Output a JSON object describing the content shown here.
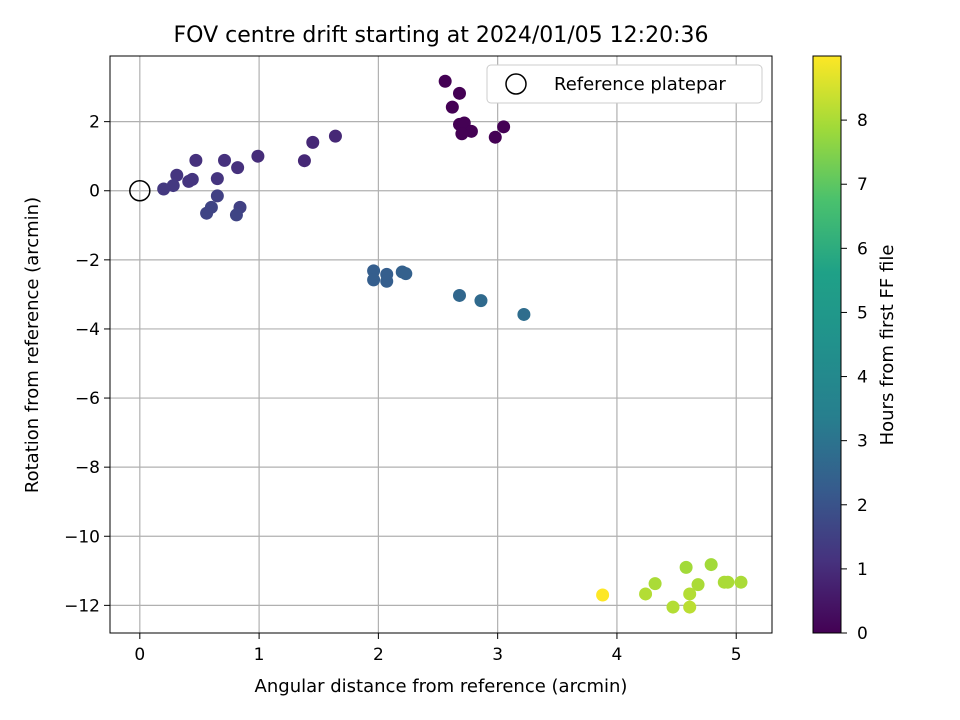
{
  "chart_data": {
    "type": "scatter",
    "title": "FOV centre drift starting at 2024/01/05 12:20:36",
    "xlabel": "Angular distance from reference (arcmin)",
    "ylabel": "Rotation from reference (arcmin)",
    "xlim": [
      -0.25,
      5.3
    ],
    "ylim": [
      -12.8,
      3.9
    ],
    "xticks": [
      0,
      1,
      2,
      3,
      4,
      5
    ],
    "yticks": [
      -12,
      -10,
      -8,
      -6,
      -4,
      -2,
      0,
      2
    ],
    "grid": true,
    "legend": {
      "label": "Reference platepar",
      "placement": "top-right"
    },
    "reference_point": {
      "x": 0,
      "y": 0
    },
    "colorbar": {
      "label": "Hours from first FF file",
      "range": [
        0,
        9
      ],
      "ticks": [
        0,
        1,
        2,
        3,
        4,
        5,
        6,
        7,
        8
      ],
      "colormap": "viridis"
    },
    "points": [
      {
        "x": 2.56,
        "y": 3.17,
        "c": 0.0
      },
      {
        "x": 2.68,
        "y": 2.82,
        "c": 0.0
      },
      {
        "x": 2.62,
        "y": 2.42,
        "c": 0.0
      },
      {
        "x": 2.68,
        "y": 1.92,
        "c": 0.0
      },
      {
        "x": 2.72,
        "y": 1.96,
        "c": 0.0
      },
      {
        "x": 2.78,
        "y": 1.72,
        "c": 0.0
      },
      {
        "x": 2.7,
        "y": 1.65,
        "c": 0.0
      },
      {
        "x": 3.05,
        "y": 1.85,
        "c": 0.0
      },
      {
        "x": 2.98,
        "y": 1.55,
        "c": 0.0
      },
      {
        "x": 1.64,
        "y": 1.58,
        "c": 0.9
      },
      {
        "x": 1.45,
        "y": 1.4,
        "c": 0.9
      },
      {
        "x": 1.38,
        "y": 0.87,
        "c": 0.9
      },
      {
        "x": 0.99,
        "y": 1.0,
        "c": 1.0
      },
      {
        "x": 0.47,
        "y": 0.88,
        "c": 1.1
      },
      {
        "x": 0.71,
        "y": 0.88,
        "c": 1.1
      },
      {
        "x": 0.82,
        "y": 0.67,
        "c": 1.1
      },
      {
        "x": 0.31,
        "y": 0.45,
        "c": 1.2
      },
      {
        "x": 0.44,
        "y": 0.33,
        "c": 1.2
      },
      {
        "x": 0.41,
        "y": 0.27,
        "c": 1.2
      },
      {
        "x": 0.65,
        "y": 0.35,
        "c": 1.2
      },
      {
        "x": 0.28,
        "y": 0.15,
        "c": 1.3
      },
      {
        "x": 0.2,
        "y": 0.05,
        "c": 1.3
      },
      {
        "x": 0.65,
        "y": -0.15,
        "c": 1.5
      },
      {
        "x": 0.84,
        "y": -0.48,
        "c": 1.5
      },
      {
        "x": 0.6,
        "y": -0.48,
        "c": 1.6
      },
      {
        "x": 0.56,
        "y": -0.65,
        "c": 1.6
      },
      {
        "x": 0.81,
        "y": -0.7,
        "c": 1.6
      },
      {
        "x": 1.96,
        "y": -2.32,
        "c": 2.3
      },
      {
        "x": 1.96,
        "y": -2.58,
        "c": 2.3
      },
      {
        "x": 2.07,
        "y": -2.42,
        "c": 2.3
      },
      {
        "x": 2.07,
        "y": -2.62,
        "c": 2.3
      },
      {
        "x": 2.2,
        "y": -2.35,
        "c": 2.4
      },
      {
        "x": 2.23,
        "y": -2.4,
        "c": 2.4
      },
      {
        "x": 2.68,
        "y": -3.03,
        "c": 2.6
      },
      {
        "x": 2.86,
        "y": -3.18,
        "c": 2.7
      },
      {
        "x": 3.22,
        "y": -3.58,
        "c": 2.8
      },
      {
        "x": 4.58,
        "y": -10.9,
        "c": 7.9
      },
      {
        "x": 4.79,
        "y": -10.82,
        "c": 7.9
      },
      {
        "x": 4.32,
        "y": -11.37,
        "c": 8.0
      },
      {
        "x": 4.68,
        "y": -11.4,
        "c": 8.0
      },
      {
        "x": 4.9,
        "y": -11.33,
        "c": 8.0
      },
      {
        "x": 4.93,
        "y": -11.33,
        "c": 8.0
      },
      {
        "x": 5.04,
        "y": -11.33,
        "c": 8.0
      },
      {
        "x": 4.24,
        "y": -11.67,
        "c": 8.1
      },
      {
        "x": 4.61,
        "y": -11.67,
        "c": 8.1
      },
      {
        "x": 4.47,
        "y": -12.05,
        "c": 8.1
      },
      {
        "x": 4.61,
        "y": -12.05,
        "c": 8.2
      },
      {
        "x": 3.88,
        "y": -11.7,
        "c": 9.0
      }
    ]
  }
}
